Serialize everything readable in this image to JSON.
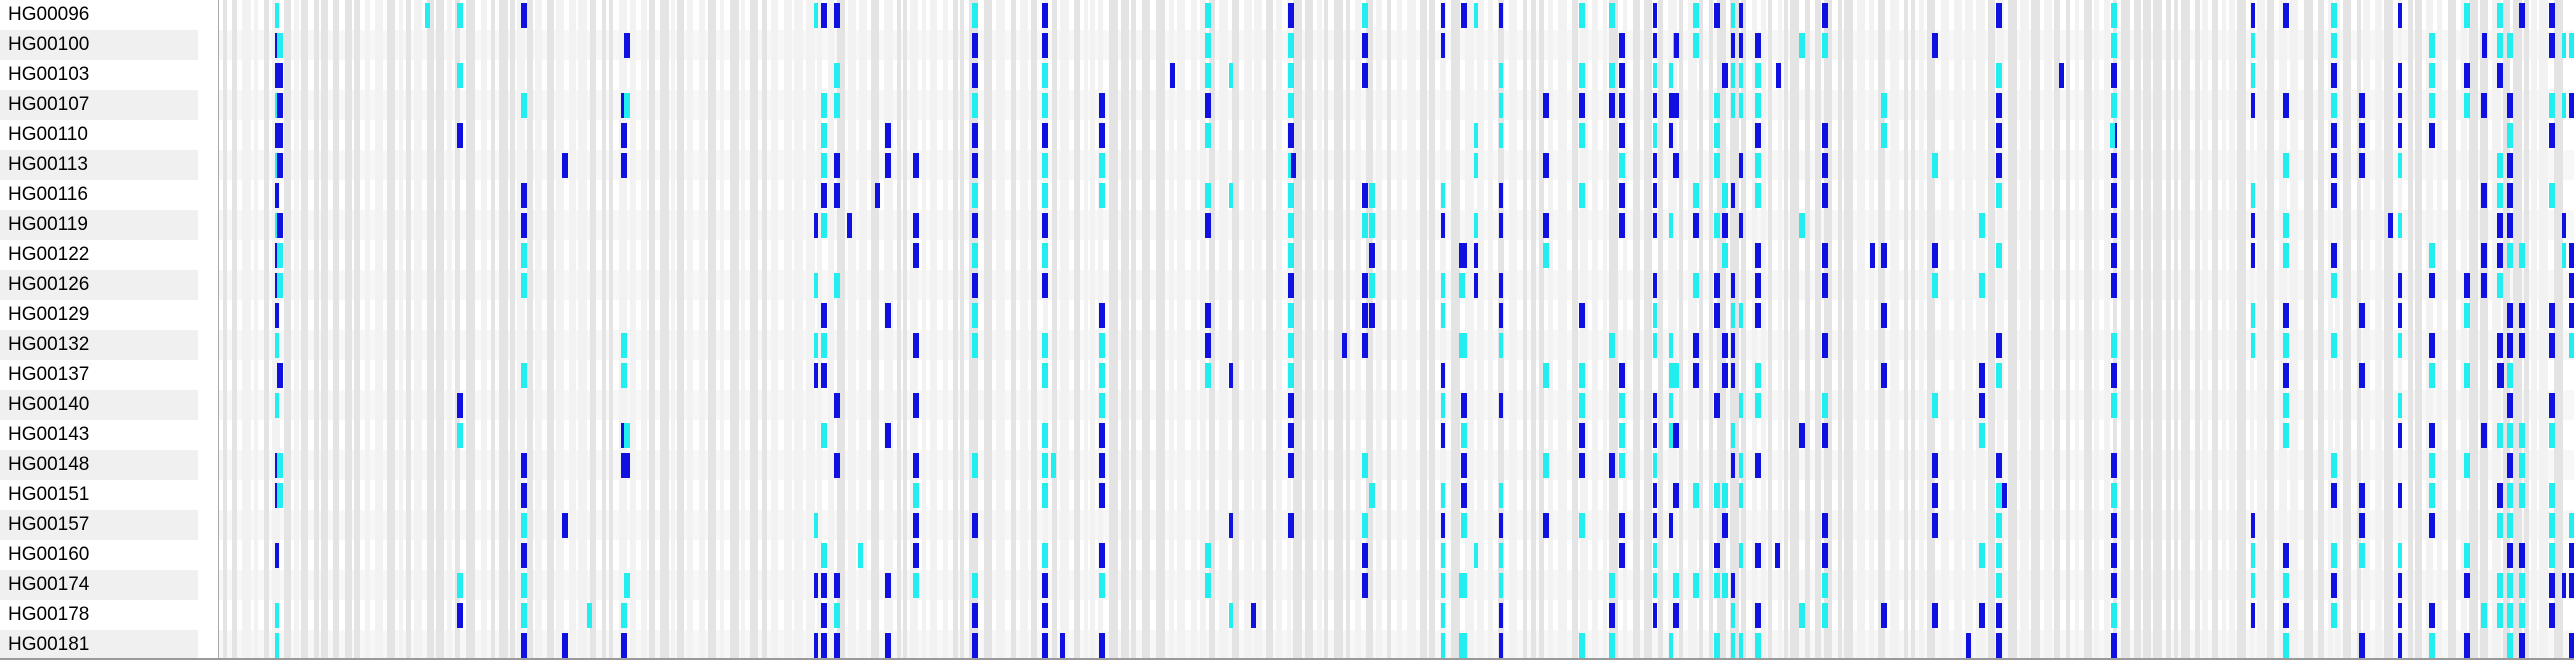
{
  "samples": [
    "HG00096",
    "HG00100",
    "HG00103",
    "HG00107",
    "HG00110",
    "HG00113",
    "HG00116",
    "HG00119",
    "HG00122",
    "HG00126",
    "HG00129",
    "HG00132",
    "HG00137",
    "HG00140",
    "HG00143",
    "HG00148",
    "HG00151",
    "HG00157",
    "HG00160",
    "HG00174",
    "HG00178",
    "HG00181"
  ],
  "colors": {
    "hom_var": "#1010e0",
    "het_var": "#22eef0",
    "hom_ref_light": "#f2f2f2",
    "hom_ref_dark": "#e4e4e4",
    "row_alt_background": "#f0f0f0"
  },
  "icons": {
    "genotype_cell": "genotype-cell-icon"
  }
}
